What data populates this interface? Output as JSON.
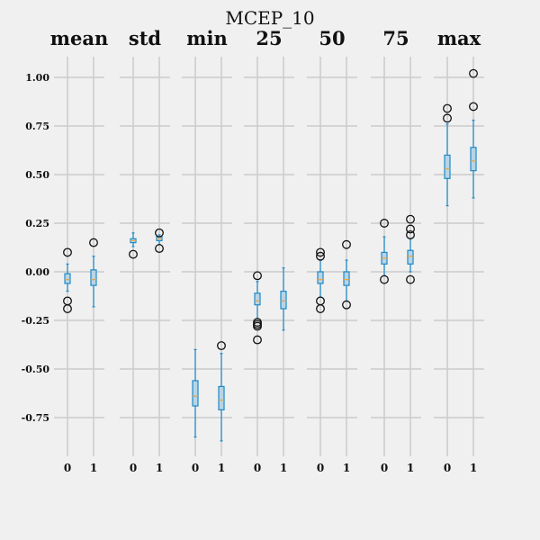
{
  "chart_data": {
    "type": "box",
    "title": "MCEP_10",
    "ylim": [
      -0.95,
      1.1
    ],
    "y_ticks": [
      "1.00",
      "0.75",
      "0.50",
      "0.25",
      "0.00",
      "-0.25",
      "-0.50",
      "-0.75"
    ],
    "y_tick_values": [
      1.0,
      0.75,
      0.5,
      0.25,
      0.0,
      -0.25,
      -0.5,
      -0.75
    ],
    "grid": true,
    "box_color": "#1f8ac6",
    "median_color": "#e8a33d",
    "panels": [
      {
        "name": "mean",
        "groups": [
          {
            "label": "0",
            "whisker_low": -0.1,
            "q1": -0.06,
            "median": -0.04,
            "q3": -0.01,
            "whisker_high": 0.04,
            "fliers": [
              0.1,
              -0.15,
              -0.19
            ]
          },
          {
            "label": "1",
            "whisker_low": -0.18,
            "q1": -0.07,
            "median": -0.04,
            "q3": 0.01,
            "whisker_high": 0.08,
            "fliers": [
              0.15
            ]
          }
        ]
      },
      {
        "name": "std",
        "groups": [
          {
            "label": "0",
            "whisker_low": 0.13,
            "q1": 0.15,
            "median": 0.16,
            "q3": 0.17,
            "whisker_high": 0.2,
            "fliers": [
              0.09
            ]
          },
          {
            "label": "1",
            "whisker_low": 0.14,
            "q1": 0.16,
            "median": 0.17,
            "q3": 0.18,
            "whisker_high": 0.19,
            "fliers": [
              0.2,
              0.12
            ]
          }
        ]
      },
      {
        "name": "min",
        "groups": [
          {
            "label": "0",
            "whisker_low": -0.85,
            "q1": -0.69,
            "median": -0.64,
            "q3": -0.56,
            "whisker_high": -0.4,
            "fliers": []
          },
          {
            "label": "1",
            "whisker_low": -0.87,
            "q1": -0.71,
            "median": -0.66,
            "q3": -0.59,
            "whisker_high": -0.42,
            "fliers": [
              -0.38
            ]
          }
        ]
      },
      {
        "name": "25",
        "groups": [
          {
            "label": "0",
            "whisker_low": -0.24,
            "q1": -0.17,
            "median": -0.15,
            "q3": -0.11,
            "whisker_high": -0.05,
            "fliers": [
              -0.02,
              -0.26,
              -0.27,
              -0.28,
              -0.35
            ]
          },
          {
            "label": "1",
            "whisker_low": -0.3,
            "q1": -0.19,
            "median": -0.15,
            "q3": -0.1,
            "whisker_high": 0.02,
            "fliers": []
          }
        ]
      },
      {
        "name": "50",
        "groups": [
          {
            "label": "0",
            "whisker_low": -0.13,
            "q1": -0.06,
            "median": -0.04,
            "q3": 0.0,
            "whisker_high": 0.06,
            "fliers": [
              0.1,
              0.08,
              -0.15,
              -0.19
            ]
          },
          {
            "label": "1",
            "whisker_low": -0.15,
            "q1": -0.07,
            "median": -0.04,
            "q3": 0.0,
            "whisker_high": 0.06,
            "fliers": [
              0.14,
              -0.17
            ]
          }
        ]
      },
      {
        "name": "75",
        "groups": [
          {
            "label": "0",
            "whisker_low": -0.02,
            "q1": 0.04,
            "median": 0.07,
            "q3": 0.1,
            "whisker_high": 0.18,
            "fliers": [
              0.25,
              -0.04
            ]
          },
          {
            "label": "1",
            "whisker_low": 0.0,
            "q1": 0.04,
            "median": 0.08,
            "q3": 0.11,
            "whisker_high": 0.17,
            "fliers": [
              0.27,
              0.22,
              0.19,
              -0.04
            ]
          }
        ]
      },
      {
        "name": "max",
        "groups": [
          {
            "label": "0",
            "whisker_low": 0.34,
            "q1": 0.48,
            "median": 0.53,
            "q3": 0.6,
            "whisker_high": 0.76,
            "fliers": [
              0.84,
              0.79
            ]
          },
          {
            "label": "1",
            "whisker_low": 0.38,
            "q1": 0.52,
            "median": 0.57,
            "q3": 0.64,
            "whisker_high": 0.78,
            "fliers": [
              1.02,
              0.85
            ]
          }
        ]
      }
    ]
  }
}
